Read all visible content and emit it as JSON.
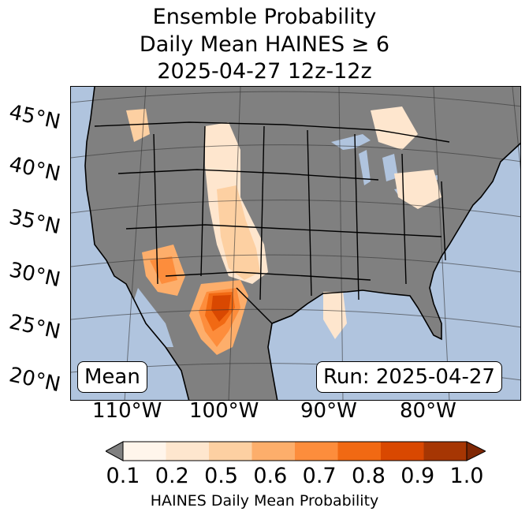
{
  "title": {
    "line1": "Ensemble Probability",
    "line2": "Daily Mean HAINES ≥ 6",
    "line3": "2025-04-27 12z-12z"
  },
  "map": {
    "latitude_labels": [
      "45°N",
      "40°N",
      "35°N",
      "30°N",
      "25°N",
      "20°N"
    ],
    "longitude_labels": [
      "110°W",
      "100°W",
      "90°W",
      "80°W"
    ],
    "mean_label": "Mean",
    "run_label": "Run: 2025-04-27",
    "colors": {
      "ocean": "#b0c4de",
      "land_low": "#808080",
      "border": "#000000"
    }
  },
  "colorbar": {
    "ticks": [
      "0.1",
      "0.2",
      "0.5",
      "0.6",
      "0.7",
      "0.8",
      "0.9",
      "1.0"
    ],
    "colors": [
      "#fff5eb",
      "#fee6ce",
      "#fdd0a2",
      "#fdae6b",
      "#fd8d3c",
      "#f16913",
      "#d94801",
      "#a63603"
    ],
    "under_color": "#808080",
    "over_color": "#7f2704",
    "label": "HAINES Daily Mean Probability"
  }
}
